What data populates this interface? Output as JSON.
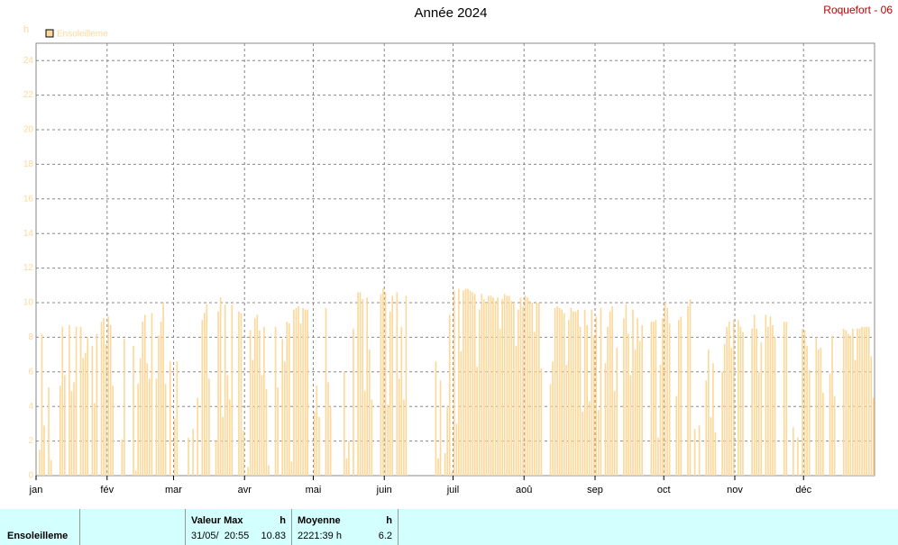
{
  "chart_data": {
    "type": "bar",
    "title": "Année 2024",
    "station": "Roquefort - 06",
    "y_label": "h",
    "series": [
      {
        "name": "Ensoleilleme",
        "color": "#fdd89a",
        "values": [
          0,
          1.5,
          8.2,
          2.9,
          0,
          5.1,
          0.9,
          0,
          0,
          0,
          5.2,
          8.6,
          5.8,
          0,
          8.7,
          4.9,
          5.4,
          8.6,
          0,
          8.6,
          6.8,
          7.1,
          8.0,
          0,
          7.5,
          4.2,
          8.2,
          0,
          8.9,
          9.1,
          7.6,
          9.2,
          8.7,
          5.2,
          0,
          0,
          0,
          2.1,
          7.9,
          0,
          0,
          0,
          7.5,
          0.3,
          5.3,
          6.8,
          8.9,
          9.3,
          6.5,
          5.6,
          9.4,
          0,
          5.6,
          8.1,
          8.9,
          10.0,
          5.3,
          0,
          6.6,
          0,
          3.3,
          6.6,
          0,
          0,
          0,
          0,
          2.2,
          0,
          2.7,
          0,
          4.5,
          0,
          9.0,
          9.4,
          9.9,
          5.6,
          0,
          0,
          2.0,
          9.5,
          10.3,
          3.4,
          9.9,
          5.8,
          4.4,
          9.9,
          0,
          0,
          9.5,
          9.4,
          2.6,
          0,
          0.5,
          8.4,
          6.7,
          9.1,
          9.3,
          8.4,
          5.8,
          8.6,
          5.0,
          0.6,
          0,
          0,
          8.6,
          5.1,
          0,
          7.9,
          6.6,
          8.9,
          8.8,
          0.8,
          9.6,
          9.7,
          9.8,
          8.8,
          9.7,
          9.6,
          9.6,
          0,
          0,
          3.7,
          5.2,
          3.4,
          0,
          0,
          9.7,
          5.4,
          4.0,
          0,
          0,
          0,
          0,
          0,
          6.0,
          1.0,
          2.0,
          0,
          8.5,
          0,
          10.6,
          10.6,
          10.2,
          4.9,
          10.3,
          7.3,
          4.4,
          0,
          0,
          0,
          10.5,
          10.83,
          10.6,
          4.1,
          9.5,
          10.4,
          0,
          10.6,
          5.6,
          8.6,
          4.4,
          10.4,
          0,
          0,
          0,
          0,
          0,
          0,
          0,
          0,
          0,
          0,
          0,
          0,
          6.6,
          1.0,
          5.5,
          0,
          1.3,
          4.0,
          9.3,
          0.2,
          10.7,
          3.0,
          10.8,
          7.2,
          10.7,
          10.8,
          10.8,
          10.7,
          10.6,
          10.5,
          6.3,
          9.6,
          10.5,
          10.2,
          10.0,
          10.4,
          10.4,
          10.3,
          10.1,
          10.3,
          8.5,
          10.2,
          10.5,
          10.4,
          10.4,
          10.1,
          10.0,
          7.5,
          9.6,
          10.3,
          9.8,
          10.4,
          10.3,
          10.1,
          10.0,
          8.3,
          10.0,
          10.0,
          6.2,
          0,
          0,
          0,
          5.3,
          6.6,
          9.7,
          9.8,
          9.7,
          9.6,
          9.4,
          6.4,
          9.0,
          9.7,
          9.5,
          9.5,
          9.6,
          8.6,
          3.7,
          9.6,
          8.7,
          4.3,
          9.6,
          8.1,
          9.2,
          3.8,
          9.7,
          0,
          6.5,
          8.6,
          9.5,
          9.8,
          4.9,
          7.4,
          0,
          0,
          9.1,
          9.9,
          8.2,
          5.8,
          9.6,
          7.3,
          9.1,
          7.8,
          8.7,
          0,
          0,
          0,
          8.9,
          8.9,
          9.0,
          2.2,
          6.4,
          9.1,
          10.0,
          9.7,
          8.8,
          0,
          0,
          4.6,
          9.0,
          9.2,
          0,
          0,
          9.8,
          10.2,
          0,
          2.7,
          0,
          2.9,
          0,
          0,
          5.5,
          7.3,
          3.4,
          6.5,
          2.5,
          0,
          0,
          6.0,
          7.6,
          8.6,
          8.9,
          7.4,
          9.0,
          0,
          9.0,
          8.6,
          8.3,
          0,
          0,
          0,
          8.5,
          9.3,
          8.5,
          6.0,
          7.7,
          0,
          9.3,
          8.6,
          9.2,
          8.7,
          8.0,
          0,
          0,
          0,
          8.9,
          8.9,
          0,
          0,
          2.8,
          0,
          2.2,
          0,
          8.5,
          8.4,
          7.5,
          6.1,
          0,
          0,
          8.0,
          7.3,
          7.4,
          4.8,
          0,
          0,
          5.9,
          8.1,
          4.6,
          0,
          0,
          0,
          8.5,
          8.4,
          8.2,
          8.1,
          8.5,
          6.7,
          8.5,
          8.5,
          8.6,
          8.6,
          8.6,
          8.6,
          6.9,
          4.5
        ]
      }
    ],
    "xlim": [
      0,
      366
    ],
    "xticks": [
      {
        "value": 0,
        "label": "jan"
      },
      {
        "value": 31,
        "label": "fév"
      },
      {
        "value": 60,
        "label": "mar"
      },
      {
        "value": 91,
        "label": "avr"
      },
      {
        "value": 121,
        "label": "mai"
      },
      {
        "value": 152,
        "label": "juin"
      },
      {
        "value": 182,
        "label": "juil"
      },
      {
        "value": 213,
        "label": "aoû"
      },
      {
        "value": 244,
        "label": "sep"
      },
      {
        "value": 274,
        "label": "oct"
      },
      {
        "value": 305,
        "label": "nov"
      },
      {
        "value": 335,
        "label": "déc"
      }
    ],
    "ylim": [
      0,
      25
    ],
    "yticks": [
      0,
      2,
      4,
      6,
      8,
      10,
      12,
      14,
      16,
      18,
      20,
      22,
      24
    ],
    "grid": true
  },
  "stats": {
    "name": "Ensoleilleme",
    "max": {
      "title": "Valeur Max",
      "unit": "h",
      "date": "31/05/  20:55",
      "value": "10.83"
    },
    "mean": {
      "title": "Moyenne",
      "unit": "h",
      "total": "2221:39 h",
      "value": "6.2"
    }
  }
}
